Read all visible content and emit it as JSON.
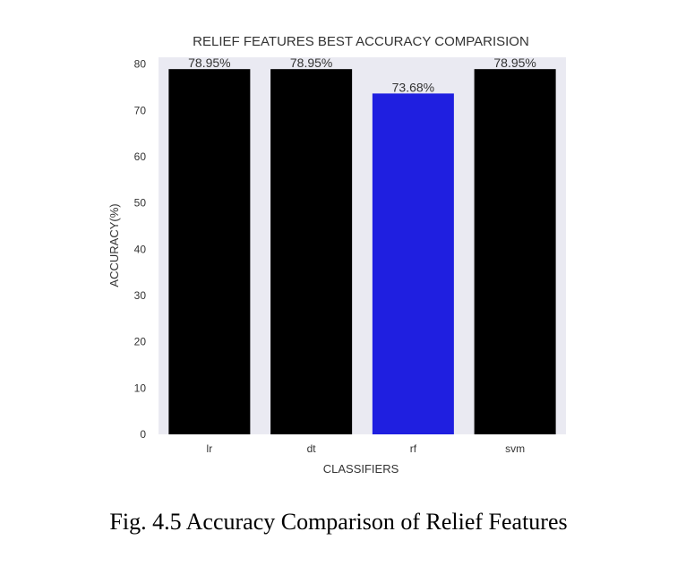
{
  "chart_data": {
    "type": "bar",
    "title": "RELIEF FEATURES BEST ACCURACY COMPARISION",
    "xlabel": "CLASSIFIERS",
    "ylabel": "ACCURACY(%)",
    "categories": [
      "lr",
      "dt",
      "rf",
      "svm"
    ],
    "values": [
      78.95,
      78.95,
      73.68,
      78.95
    ],
    "value_labels": [
      "78.95%",
      "78.95%",
      "73.68%",
      "78.95%"
    ],
    "colors": [
      "#000000",
      "#000000",
      "#1f1fe0",
      "#000000"
    ],
    "yticks": [
      0,
      10,
      20,
      30,
      40,
      50,
      60,
      70,
      80
    ],
    "ylim": [
      0,
      81.5
    ],
    "background": "#eaeaf2",
    "grid": false
  },
  "caption": "Fig. 4.5 Accuracy Comparison of Relief Features"
}
